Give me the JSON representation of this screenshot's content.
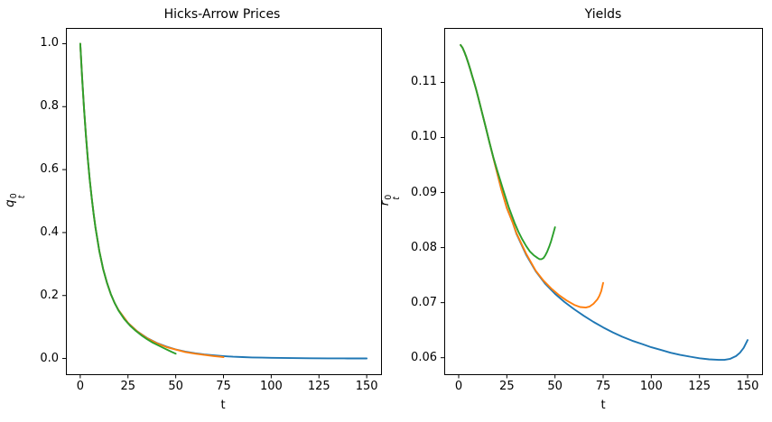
{
  "chart_data": [
    {
      "type": "line",
      "title": "Hicks-Arrow Prices",
      "xlabel": "t",
      "ylabel": {
        "base": "q",
        "sup": "0",
        "sub": "t"
      },
      "xlim": [
        -7.5,
        157.5
      ],
      "ylim": [
        -0.05,
        1.05
      ],
      "xticks": [
        0,
        25,
        50,
        75,
        100,
        125,
        150
      ],
      "xtick_labels": [
        "0",
        "25",
        "50",
        "75",
        "100",
        "125",
        "150"
      ],
      "yticks": [
        0.0,
        0.2,
        0.4,
        0.6,
        0.8,
        1.0
      ],
      "ytick_labels": [
        "0.0",
        "0.2",
        "0.4",
        "0.6",
        "0.8",
        "1.0"
      ],
      "grid": false,
      "legend": "none",
      "series": [
        {
          "name": "blue",
          "color": "#1f77b4",
          "points": [
            [
              0,
              1.0
            ],
            [
              1,
              0.8898
            ],
            [
              2,
              0.7925
            ],
            [
              3,
              0.7072
            ],
            [
              4,
              0.6323
            ],
            [
              5,
              0.567
            ],
            [
              6,
              0.5095
            ],
            [
              7,
              0.4591
            ],
            [
              8,
              0.4148
            ],
            [
              10,
              0.3413
            ],
            [
              12,
              0.2846
            ],
            [
              14,
              0.2401
            ],
            [
              16,
              0.2048
            ],
            [
              18,
              0.1767
            ],
            [
              20,
              0.1541
            ],
            [
              25,
              0.1131
            ],
            [
              30,
              0.0854
            ],
            [
              35,
              0.0652
            ],
            [
              40,
              0.0498
            ],
            [
              45,
              0.0378
            ],
            [
              50,
              0.0287
            ],
            [
              55,
              0.0219
            ],
            [
              60,
              0.0167
            ],
            [
              65,
              0.0128
            ],
            [
              70,
              0.0098
            ],
            [
              75,
              0.0075
            ],
            [
              80,
              0.0057
            ],
            [
              85,
              0.0044
            ],
            [
              90,
              0.0034
            ],
            [
              95,
              0.0026
            ],
            [
              100,
              0.0021
            ],
            [
              110,
              0.0012
            ],
            [
              120,
              0.0007
            ],
            [
              130,
              0.0004
            ],
            [
              140,
              0.0002
            ],
            [
              150,
              0.0001
            ]
          ]
        },
        {
          "name": "orange",
          "color": "#ff7f0e",
          "points": [
            [
              0,
              1.0
            ],
            [
              1,
              0.8898
            ],
            [
              2,
              0.7925
            ],
            [
              3,
              0.7072
            ],
            [
              4,
              0.6323
            ],
            [
              5,
              0.567
            ],
            [
              6,
              0.5095
            ],
            [
              7,
              0.4591
            ],
            [
              8,
              0.4148
            ],
            [
              10,
              0.3413
            ],
            [
              12,
              0.2846
            ],
            [
              14,
              0.2401
            ],
            [
              16,
              0.2048
            ],
            [
              18,
              0.1767
            ],
            [
              20,
              0.1541
            ],
            [
              25,
              0.1131
            ],
            [
              30,
              0.0852
            ],
            [
              35,
              0.0644
            ],
            [
              40,
              0.0484
            ],
            [
              45,
              0.0366
            ],
            [
              50,
              0.0282
            ],
            [
              55,
              0.0206
            ],
            [
              60,
              0.0154
            ],
            [
              65,
              0.0112
            ],
            [
              70,
              0.0075
            ],
            [
              73,
              0.0055
            ],
            [
              75,
              0.004
            ]
          ]
        },
        {
          "name": "green",
          "color": "#2ca02c",
          "points": [
            [
              0,
              1.0
            ],
            [
              1,
              0.8898
            ],
            [
              2,
              0.7925
            ],
            [
              3,
              0.7072
            ],
            [
              4,
              0.6323
            ],
            [
              5,
              0.567
            ],
            [
              6,
              0.5095
            ],
            [
              7,
              0.4591
            ],
            [
              8,
              0.4148
            ],
            [
              10,
              0.3413
            ],
            [
              12,
              0.2846
            ],
            [
              14,
              0.2401
            ],
            [
              16,
              0.2048
            ],
            [
              18,
              0.1767
            ],
            [
              20,
              0.1526
            ],
            [
              23,
              0.1256
            ],
            [
              26,
              0.1047
            ],
            [
              29,
              0.088
            ],
            [
              32,
              0.0737
            ],
            [
              35,
              0.0612
            ],
            [
              38,
              0.0503
            ],
            [
              41,
              0.041
            ],
            [
              44,
              0.0321
            ],
            [
              46,
              0.0262
            ],
            [
              48,
              0.0205
            ],
            [
              50,
              0.0152
            ]
          ]
        }
      ]
    },
    {
      "type": "line",
      "title": "Yields",
      "xlabel": "t",
      "ylabel": {
        "base": "r",
        "sup": "0",
        "sub": "t"
      },
      "xlim": [
        -7.5,
        157.5
      ],
      "ylim": [
        0.057,
        0.1199
      ],
      "xticks": [
        0,
        25,
        50,
        75,
        100,
        125,
        150
      ],
      "xtick_labels": [
        "0",
        "25",
        "50",
        "75",
        "100",
        "125",
        "150"
      ],
      "yticks": [
        0.06,
        0.07,
        0.08,
        0.09,
        0.1,
        0.11
      ],
      "ytick_labels": [
        "0.06",
        "0.07",
        "0.08",
        "0.09",
        "0.10",
        "0.11"
      ],
      "grid": false,
      "legend": "none",
      "series": [
        {
          "name": "blue",
          "color": "#1f77b4",
          "points": [
            [
              1,
              0.1168
            ],
            [
              2,
              0.1163
            ],
            [
              3,
              0.1155
            ],
            [
              4,
              0.1146
            ],
            [
              5,
              0.1135
            ],
            [
              6,
              0.1124
            ],
            [
              7,
              0.1112
            ],
            [
              8,
              0.11
            ],
            [
              9,
              0.1088
            ],
            [
              10,
              0.1075
            ],
            [
              12,
              0.1047
            ],
            [
              14,
              0.1019
            ],
            [
              16,
              0.0991
            ],
            [
              18,
              0.0963
            ],
            [
              20,
              0.0935
            ],
            [
              22,
              0.0908
            ],
            [
              25,
              0.0872
            ],
            [
              28,
              0.0846
            ],
            [
              30,
              0.0825
            ],
            [
              35,
              0.0787
            ],
            [
              40,
              0.0757
            ],
            [
              45,
              0.0734
            ],
            [
              50,
              0.0716
            ],
            [
              55,
              0.0701
            ],
            [
              60,
              0.0688
            ],
            [
              65,
              0.0676
            ],
            [
              70,
              0.0665
            ],
            [
              75,
              0.0655
            ],
            [
              80,
              0.0646
            ],
            [
              85,
              0.0638
            ],
            [
              90,
              0.0631
            ],
            [
              95,
              0.0625
            ],
            [
              100,
              0.0619
            ],
            [
              105,
              0.0614
            ],
            [
              110,
              0.0609
            ],
            [
              115,
              0.0605
            ],
            [
              120,
              0.0602
            ],
            [
              125,
              0.0599
            ],
            [
              130,
              0.0597
            ],
            [
              135,
              0.0596
            ],
            [
              138,
              0.0596
            ],
            [
              141,
              0.0598
            ],
            [
              144,
              0.0603
            ],
            [
              146,
              0.0609
            ],
            [
              148,
              0.0618
            ],
            [
              150,
              0.0632
            ]
          ]
        },
        {
          "name": "orange",
          "color": "#ff7f0e",
          "points": [
            [
              1,
              0.1168
            ],
            [
              2,
              0.1163
            ],
            [
              3,
              0.1155
            ],
            [
              4,
              0.1146
            ],
            [
              5,
              0.1135
            ],
            [
              6,
              0.1124
            ],
            [
              7,
              0.1112
            ],
            [
              8,
              0.11
            ],
            [
              9,
              0.1088
            ],
            [
              10,
              0.1075
            ],
            [
              12,
              0.1047
            ],
            [
              14,
              0.1019
            ],
            [
              16,
              0.0991
            ],
            [
              18,
              0.0963
            ],
            [
              20,
              0.0935
            ],
            [
              22,
              0.0908
            ],
            [
              25,
              0.0872
            ],
            [
              28,
              0.0846
            ],
            [
              30,
              0.0826
            ],
            [
              35,
              0.0789
            ],
            [
              40,
              0.0758
            ],
            [
              44,
              0.074
            ],
            [
              48,
              0.0726
            ],
            [
              52,
              0.0714
            ],
            [
              56,
              0.0704
            ],
            [
              60,
              0.0696
            ],
            [
              63,
              0.0692
            ],
            [
              66,
              0.0691
            ],
            [
              68,
              0.0693
            ],
            [
              70,
              0.0698
            ],
            [
              72,
              0.0706
            ],
            [
              73,
              0.0712
            ],
            [
              74,
              0.0721
            ],
            [
              75,
              0.0736
            ]
          ]
        },
        {
          "name": "green",
          "color": "#2ca02c",
          "points": [
            [
              1,
              0.1168
            ],
            [
              2,
              0.1163
            ],
            [
              3,
              0.1155
            ],
            [
              4,
              0.1146
            ],
            [
              5,
              0.1135
            ],
            [
              6,
              0.1124
            ],
            [
              7,
              0.1112
            ],
            [
              8,
              0.11
            ],
            [
              9,
              0.1088
            ],
            [
              10,
              0.1075
            ],
            [
              12,
              0.1047
            ],
            [
              14,
              0.1019
            ],
            [
              16,
              0.0991
            ],
            [
              18,
              0.0964
            ],
            [
              20,
              0.094
            ],
            [
              23,
              0.0906
            ],
            [
              26,
              0.0873
            ],
            [
              29,
              0.0845
            ],
            [
              31,
              0.0829
            ],
            [
              33,
              0.0815
            ],
            [
              35,
              0.0803
            ],
            [
              37,
              0.0793
            ],
            [
              39,
              0.0786
            ],
            [
              41,
              0.0781
            ],
            [
              42,
              0.0779
            ],
            [
              43,
              0.0779
            ],
            [
              44,
              0.0781
            ],
            [
              45,
              0.0786
            ],
            [
              46,
              0.0793
            ],
            [
              47,
              0.0802
            ],
            [
              48,
              0.0812
            ],
            [
              49,
              0.0824
            ],
            [
              50,
              0.0837
            ]
          ]
        }
      ]
    }
  ]
}
